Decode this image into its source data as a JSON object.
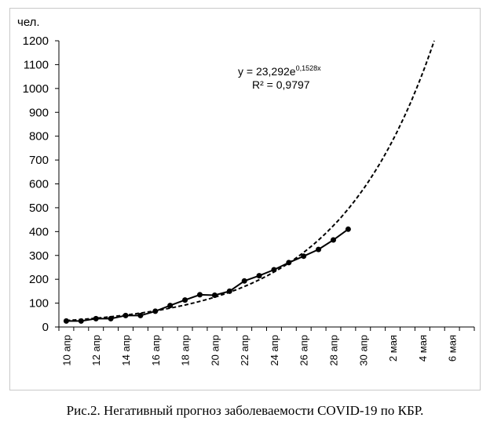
{
  "caption": "Рис.2. Негативный прогноз заболеваемости COVID-19 по КБР.",
  "chart_data": {
    "type": "line",
    "ylabel": "чел.",
    "ylim": [
      0,
      1200
    ],
    "yticks": [
      0,
      100,
      200,
      300,
      400,
      500,
      600,
      700,
      800,
      900,
      1000,
      1100,
      1200
    ],
    "x_tick_labels": [
      "10 апр",
      "12 апр",
      "14 апр",
      "16 апр",
      "18 апр",
      "20 апр",
      "22 апр",
      "24 апр",
      "26 апр",
      "28 апр",
      "30 апр",
      "2 мая",
      "4 мая",
      "6 мая"
    ],
    "x_day_range": [
      1,
      28
    ],
    "series": [
      {
        "kind": "observed",
        "x": [
          1,
          2,
          3,
          4,
          5,
          6,
          7,
          8,
          9,
          10,
          11,
          12,
          13,
          14,
          15,
          16,
          17,
          18,
          19,
          20
        ],
        "values": [
          25,
          25,
          35,
          35,
          48,
          48,
          66,
          90,
          113,
          135,
          133,
          150,
          193,
          215,
          240,
          270,
          297,
          325,
          365,
          410
        ]
      },
      {
        "kind": "trendline",
        "equation_text": "y = 23,292e",
        "equation_exp": "0,1528x",
        "r2_text": "R² = 0,9797",
        "a": 23.292,
        "b": 0.1528
      }
    ],
    "grid": false,
    "legend": "none",
    "colors": {
      "line": "#000000",
      "axis": "#000000",
      "frame": "#c9c9c9"
    }
  }
}
